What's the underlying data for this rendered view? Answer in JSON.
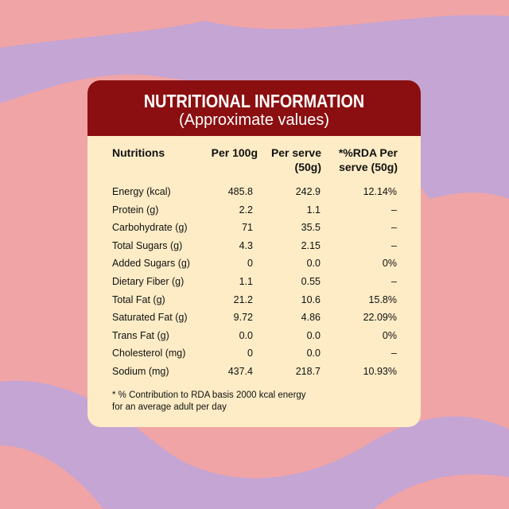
{
  "colors": {
    "background_pink": "#f0a4a6",
    "background_lavender": "#c4a5d4",
    "card_background": "#fdecc6",
    "header_background": "#8b0f10",
    "header_text": "#ffffff"
  },
  "header": {
    "title": "NUTRITIONAL INFORMATION",
    "subtitle": "(Approximate values)"
  },
  "columns": {
    "name": "Nutritions",
    "per_100g": "Per 100g",
    "per_serve_line1": "Per serve",
    "per_serve_line2": "(50g)",
    "rda_line1": "*%RDA Per",
    "rda_line2": "serve (50g)"
  },
  "rows": [
    {
      "name": "Energy (kcal)",
      "per_100g": "485.8",
      "per_serve": "242.9",
      "rda": "12.14%"
    },
    {
      "name": "Protein (g)",
      "per_100g": "2.2",
      "per_serve": "1.1",
      "rda": "–"
    },
    {
      "name": "Carbohydrate (g)",
      "per_100g": "71",
      "per_serve": "35.5",
      "rda": "–"
    },
    {
      "name": "Total Sugars (g)",
      "per_100g": "4.3",
      "per_serve": "2.15",
      "rda": "–"
    },
    {
      "name": "Added Sugars (g)",
      "per_100g": "0",
      "per_serve": "0.0",
      "rda": "0%"
    },
    {
      "name": "Dietary Fiber (g)",
      "per_100g": "1.1",
      "per_serve": "0.55",
      "rda": "–"
    },
    {
      "name": "Total Fat (g)",
      "per_100g": "21.2",
      "per_serve": "10.6",
      "rda": "15.8%"
    },
    {
      "name": "Saturated Fat (g)",
      "per_100g": "9.72",
      "per_serve": "4.86",
      "rda": "22.09%"
    },
    {
      "name": "Trans Fat (g)",
      "per_100g": "0.0",
      "per_serve": "0.0",
      "rda": "0%"
    },
    {
      "name": "Cholesterol (mg)",
      "per_100g": "0",
      "per_serve": "0.0",
      "rda": "–"
    },
    {
      "name": "Sodium (mg)",
      "per_100g": "437.4",
      "per_serve": "218.7",
      "rda": "10.93%"
    }
  ],
  "footnote": {
    "line1": "* % Contribution to RDA basis 2000 kcal energy",
    "line2": "for an average adult per day"
  }
}
